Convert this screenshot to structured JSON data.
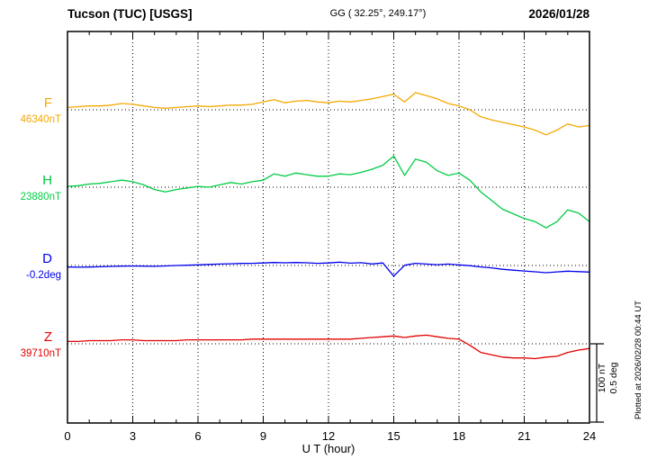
{
  "header": {
    "station": "Tucson (TUC)  [USGS]",
    "coords": "GG ( 32.25°, 249.17°)",
    "date": "2026/01/28"
  },
  "side": {
    "scale_label_1": "100 nT",
    "scale_label_2": "0.5 deg",
    "plotted_at": "Plotted at 2026/02/28 00:44 UT"
  },
  "chart_data": {
    "type": "line",
    "title": "Tucson (TUC) [USGS] magnetogram 2026/01/28",
    "xlabel": "U T (hour)",
    "x_range": [
      0,
      24
    ],
    "x_ticks": [
      0,
      3,
      6,
      9,
      12,
      15,
      18,
      21,
      24
    ],
    "grid": "vertical dotted lines every 3 h; horizontal dotted line at each component baseline",
    "scale_per_division": "100 nT / 0.5 deg",
    "x": [
      0,
      0.5,
      1,
      1.5,
      2,
      2.5,
      3,
      3.5,
      4,
      4.5,
      5,
      5.5,
      6,
      6.5,
      7,
      7.5,
      8,
      8.5,
      9,
      9.5,
      10,
      10.5,
      11,
      11.5,
      12,
      12.5,
      13,
      13.5,
      14,
      14.5,
      15,
      15.5,
      16,
      16.5,
      17,
      17.5,
      18,
      18.5,
      19,
      19.5,
      20,
      20.5,
      21,
      21.5,
      22,
      22.5,
      23,
      23.5,
      24
    ],
    "series": [
      {
        "name": "F",
        "unit": "nT",
        "color": "#f5a800",
        "baseline": 46340,
        "baseline_label": "46340nT",
        "scale_per_div": 100,
        "values": [
          46343,
          46344,
          46345,
          46345,
          46346,
          46348,
          46347,
          46345,
          46343,
          46342,
          46343,
          46344,
          46345,
          46344,
          46345,
          46346,
          46346,
          46347,
          46350,
          46353,
          46349,
          46351,
          46352,
          46350,
          46349,
          46351,
          46350,
          46352,
          46354,
          46357,
          46360,
          46350,
          46362,
          46358,
          46354,
          46348,
          46345,
          46340,
          46331,
          46327,
          46324,
          46321,
          46318,
          46314,
          46308,
          46314,
          46322,
          46318,
          46320
        ]
      },
      {
        "name": "H",
        "unit": "nT",
        "color": "#00cc44",
        "baseline": 23880,
        "baseline_label": "23880nT",
        "scale_per_div": 100,
        "values": [
          23881,
          23882,
          23884,
          23885,
          23887,
          23889,
          23887,
          23883,
          23877,
          23874,
          23877,
          23879,
          23881,
          23880,
          23883,
          23886,
          23884,
          23887,
          23889,
          23897,
          23894,
          23898,
          23896,
          23894,
          23894,
          23897,
          23896,
          23899,
          23903,
          23908,
          23920,
          23895,
          23916,
          23912,
          23901,
          23895,
          23898,
          23889,
          23874,
          23863,
          23852,
          23846,
          23840,
          23836,
          23828,
          23836,
          23851,
          23847,
          23836
        ]
      },
      {
        "name": "D",
        "unit": "deg",
        "color": "#0000ee",
        "baseline": -0.2,
        "baseline_label": "-0.2deg",
        "scale_per_div": 0.5,
        "values": [
          -0.21,
          -0.211,
          -0.21,
          -0.208,
          -0.206,
          -0.204,
          -0.203,
          -0.204,
          -0.205,
          -0.203,
          -0.2,
          -0.198,
          -0.196,
          -0.193,
          -0.191,
          -0.189,
          -0.187,
          -0.186,
          -0.184,
          -0.181,
          -0.183,
          -0.181,
          -0.183,
          -0.186,
          -0.184,
          -0.179,
          -0.185,
          -0.182,
          -0.19,
          -0.184,
          -0.268,
          -0.198,
          -0.186,
          -0.191,
          -0.195,
          -0.191,
          -0.196,
          -0.201,
          -0.209,
          -0.215,
          -0.224,
          -0.23,
          -0.235,
          -0.24,
          -0.246,
          -0.241,
          -0.236,
          -0.239,
          -0.242
        ]
      },
      {
        "name": "Z",
        "unit": "nT",
        "color": "#e00000",
        "baseline": 39710,
        "baseline_label": "39710nT",
        "scale_per_div": 100,
        "values": [
          39713,
          39713,
          39714,
          39714,
          39714,
          39715,
          39715,
          39714,
          39714,
          39714,
          39714,
          39715,
          39715,
          39715,
          39715,
          39715,
          39715,
          39716,
          39716,
          39716,
          39716,
          39716,
          39716,
          39716,
          39716,
          39716,
          39716,
          39717,
          39718,
          39719,
          39720,
          39718,
          39720,
          39721,
          39719,
          39717,
          39716,
          39708,
          39699,
          39696,
          39693,
          39692,
          39692,
          39691,
          39693,
          39694,
          39699,
          39702,
          39704
        ]
      }
    ]
  }
}
